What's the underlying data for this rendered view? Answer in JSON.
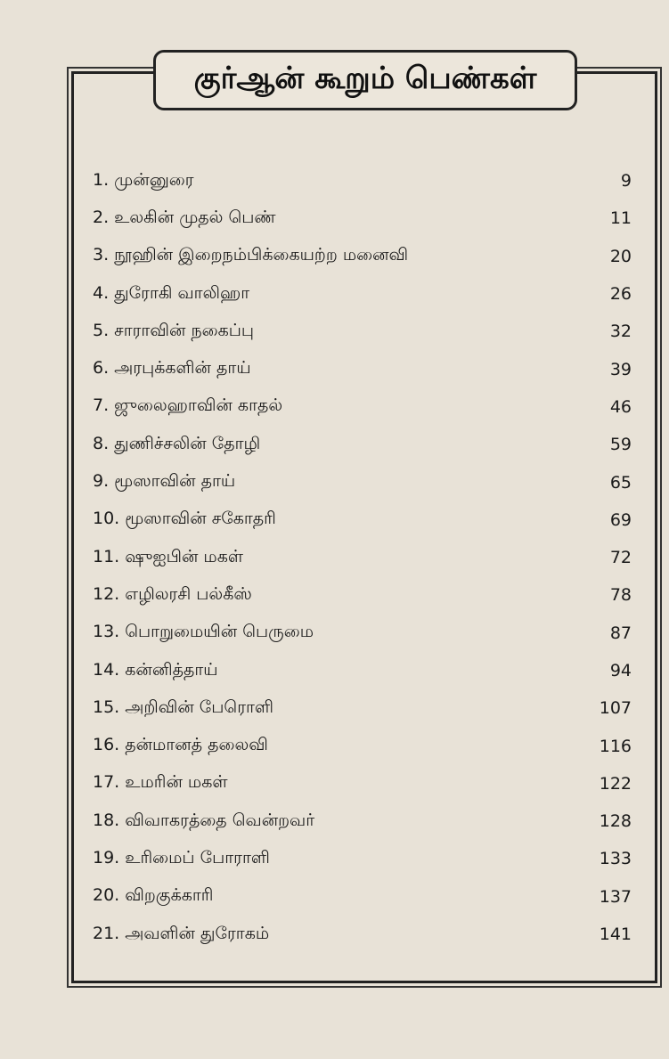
{
  "title": "குர்ஆன் கூறும் பெண்கள்",
  "toc": [
    {
      "label": "1. முன்னுரை",
      "page": "9"
    },
    {
      "label": "2. உலகின் முதல் பெண்",
      "page": "11"
    },
    {
      "label": "3. நூஹின் இறைநம்பிக்கையற்ற மனைவி",
      "page": "20"
    },
    {
      "label": "4. துரோகி வாலிஹா",
      "page": "26"
    },
    {
      "label": "5. சாராவின் நகைப்பு",
      "page": "32"
    },
    {
      "label": "6. அரபுக்களின் தாய்",
      "page": "39"
    },
    {
      "label": "7. ஜுலைஹாவின் காதல்",
      "page": "46"
    },
    {
      "label": "8. துணிச்சலின் தோழி",
      "page": "59"
    },
    {
      "label": "9. மூஸாவின் தாய்",
      "page": "65"
    },
    {
      "label": "10. மூஸாவின் சகோதரி",
      "page": "69"
    },
    {
      "label": "11. ஷுஐபின் மகள்",
      "page": "72"
    },
    {
      "label": "12. எழிலரசி பல்கீஸ்",
      "page": "78"
    },
    {
      "label": "13. பொறுமையின் பெருமை",
      "page": "87"
    },
    {
      "label": "14. கன்னித்தாய்",
      "page": "94"
    },
    {
      "label": "15. அறிவின் பேரொளி",
      "page": "107"
    },
    {
      "label": "16. தன்மானத் தலைவி",
      "page": "116"
    },
    {
      "label": "17. உமரின் மகள்",
      "page": "122"
    },
    {
      "label": "18. விவாகரத்தை வென்றவர்",
      "page": "128"
    },
    {
      "label": "19. உரிமைப் போராளி",
      "page": "133"
    },
    {
      "label": "20. விறகுக்காரி",
      "page": "137"
    },
    {
      "label": "21. அவளின் துரோகம்",
      "page": "141"
    }
  ]
}
